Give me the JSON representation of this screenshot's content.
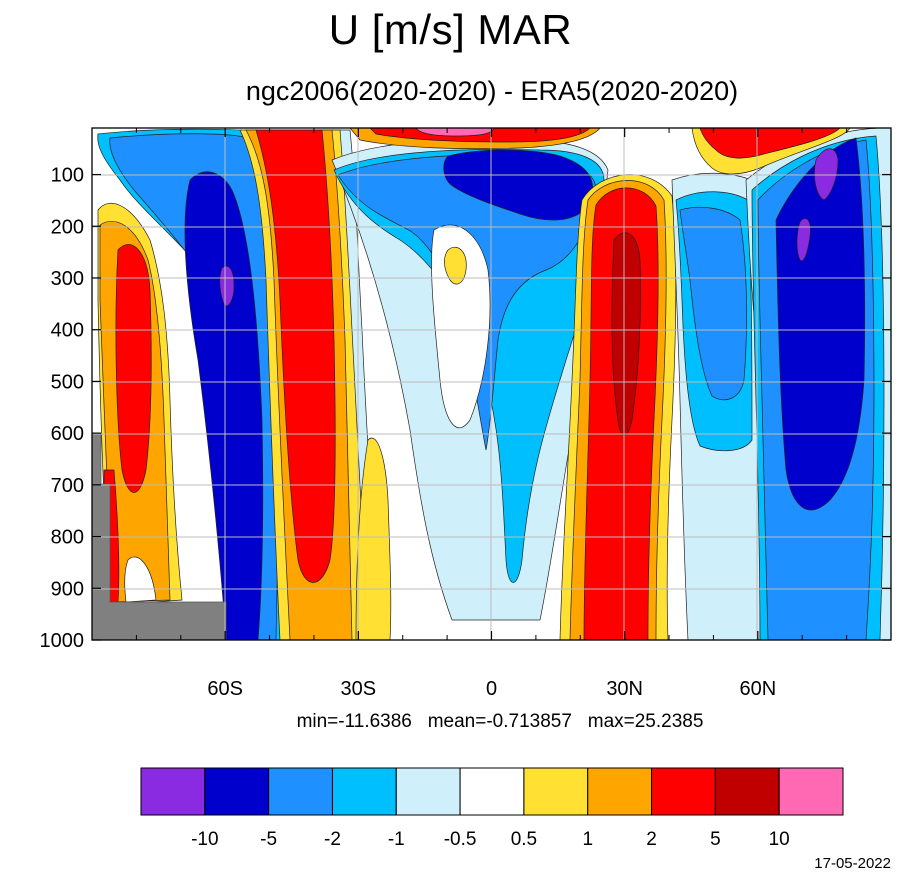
{
  "title": "U [m/s] MAR",
  "subtitle": "ngc2006(2020-2020) - ERA5(2020-2020)",
  "stats": "min=-11.6386   mean=-0.713857   max=25.2385",
  "date": "17-05-2022",
  "chart_data": {
    "type": "contour",
    "variable": "U [m/s]",
    "x_axis": {
      "range": [
        -90,
        90
      ],
      "ticks": [
        -60,
        -30,
        0,
        30,
        60
      ],
      "tick_labels": [
        "60S",
        "30S",
        "0",
        "30N",
        "60N"
      ]
    },
    "y_axis": {
      "range": [
        1000,
        10
      ],
      "ticks": [
        100,
        200,
        300,
        400,
        500,
        600,
        700,
        800,
        900,
        1000
      ],
      "tick_labels": [
        "100",
        "200",
        "300",
        "400",
        "500",
        "600",
        "700",
        "800",
        "900",
        "1000"
      ]
    },
    "grid": true,
    "colorbar": {
      "levels": [
        "-10",
        "-5",
        "-2",
        "-1",
        "-0.5",
        "0.5",
        "1",
        "2",
        "5",
        "10"
      ],
      "colors": [
        "#8a2be2",
        "#0000cd",
        "#1e90ff",
        "#00bfff",
        "#cfeffa",
        "#ffffff",
        "#ffe033",
        "#ffa500",
        "#ff0000",
        "#c00000",
        "#ff69b4"
      ]
    },
    "statistics": {
      "min": -11.6386,
      "mean": -0.713857,
      "max": 25.2385
    },
    "missing_color": "#808080"
  }
}
